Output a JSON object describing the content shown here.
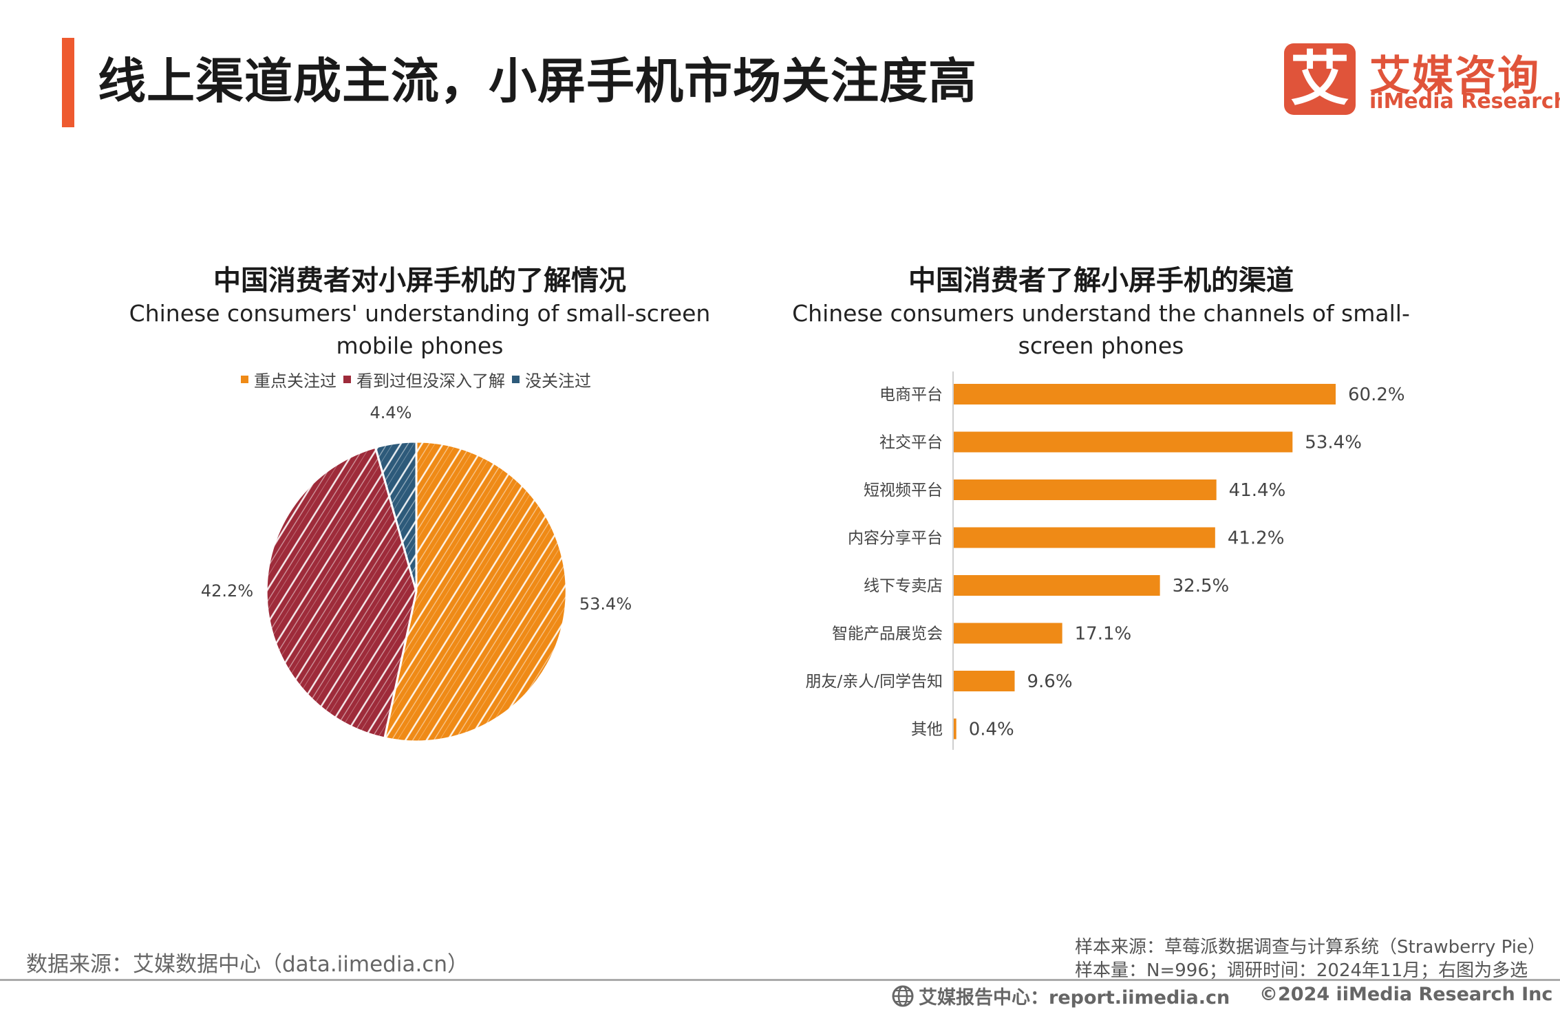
{
  "header": {
    "title": "线上渠道成主流，小屏手机市场关注度高",
    "logo_mark": "艾",
    "logo_cn": "艾媒咨询",
    "logo_en": "iiMedia Research"
  },
  "colors": {
    "accent": "#ee5a2f",
    "logo": "#e0543a",
    "orange": "#ef8a16",
    "red": "#9e2b3a",
    "blue": "#2d5a7a"
  },
  "chart_data": [
    {
      "type": "pie",
      "title": "中国消费者对小屏手机的了解情况",
      "subtitle": "Chinese consumers' understanding of small-screen mobile phones",
      "legend_position": "top",
      "slices": [
        {
          "name": "重点关注过",
          "value": 53.4,
          "label": "53.4%",
          "color": "#ef8a16"
        },
        {
          "name": "看到过但没深入了解",
          "value": 42.2,
          "label": "42.2%",
          "color": "#9e2b3a"
        },
        {
          "name": "没关注过",
          "value": 4.4,
          "label": "4.4%",
          "color": "#2d5a7a"
        }
      ]
    },
    {
      "type": "bar",
      "orientation": "horizontal",
      "title": "中国消费者了解小屏手机的渠道",
      "subtitle": "Chinese consumers understand the channels of small-screen phones",
      "categories": [
        "电商平台",
        "社交平台",
        "短视频平台",
        "内容分享平台",
        "线下专卖店",
        "智能产品展览会",
        "朋友/亲人/同学告知",
        "其他"
      ],
      "values": [
        60.2,
        53.4,
        41.4,
        41.2,
        32.5,
        17.1,
        9.6,
        0.4
      ],
      "labels": [
        "60.2%",
        "53.4%",
        "41.4%",
        "41.2%",
        "32.5%",
        "17.1%",
        "9.6%",
        "0.4%"
      ],
      "color": "#ef8a16"
    }
  ],
  "footer": {
    "data_source": "数据来源：艾媒数据中心（data.iimedia.cn）",
    "sample_source": "样本来源：草莓派数据调查与计算系统（Strawberry Pie）",
    "sample_size": "样本量：N=996；调研时间：2024年11月；右图为多选",
    "report_center": "艾媒报告中心：report.iimedia.cn",
    "copyright": "©2024  iiMedia Research  Inc"
  }
}
